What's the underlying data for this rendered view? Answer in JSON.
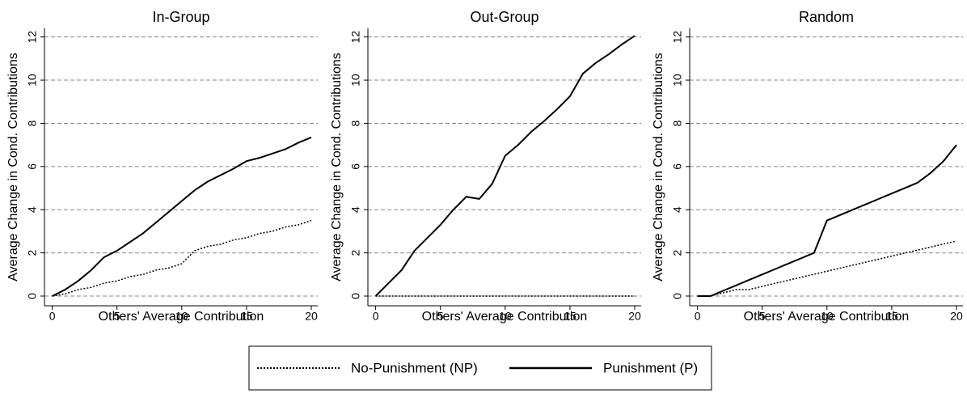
{
  "chart_data": [
    {
      "type": "line",
      "title": "In-Group",
      "xlabel": "Others' Average Contribution",
      "ylabel": "Average Change in Cond. Contributions",
      "x": [
        0,
        1,
        2,
        3,
        4,
        5,
        6,
        7,
        8,
        9,
        10,
        11,
        12,
        13,
        14,
        15,
        16,
        17,
        18,
        19,
        20
      ],
      "series": [
        {
          "name": "No-Punishment (NP)",
          "color": "#000000",
          "style": "dotted",
          "values": [
            0,
            0.1,
            0.3,
            0.4,
            0.6,
            0.7,
            0.9,
            1.0,
            1.2,
            1.3,
            1.5,
            2.1,
            2.3,
            2.4,
            2.6,
            2.7,
            2.9,
            3.0,
            3.2,
            3.3,
            3.5
          ]
        },
        {
          "name": "Punishment (P)",
          "color": "#000000",
          "style": "solid",
          "values": [
            0,
            0.3,
            0.7,
            1.2,
            1.8,
            2.1,
            2.5,
            2.9,
            3.4,
            3.9,
            4.4,
            4.9,
            5.3,
            5.6,
            5.9,
            6.25,
            6.4,
            6.6,
            6.8,
            7.1,
            7.35
          ]
        }
      ],
      "xlim": [
        -0.6,
        20.5
      ],
      "xticks": [
        0,
        5,
        10,
        15,
        20
      ],
      "ylim": [
        -0.45,
        12.4
      ],
      "yticks": [
        0,
        2,
        4,
        6,
        8,
        10,
        12
      ],
      "grid": true
    },
    {
      "type": "line",
      "title": "Out-Group",
      "xlabel": "Others' Average Contribution",
      "ylabel": "Average Change in Cond. Contributions",
      "x": [
        0,
        1,
        2,
        3,
        4,
        5,
        6,
        7,
        8,
        9,
        10,
        11,
        12,
        13,
        14,
        15,
        16,
        17,
        18,
        19,
        20
      ],
      "series": [
        {
          "name": "No-Punishment (NP)",
          "color": "#000000",
          "style": "dotted",
          "values": [
            0,
            0,
            0,
            0,
            0,
            0,
            0,
            0,
            0,
            0,
            0,
            0,
            0,
            0,
            0,
            0,
            0,
            0,
            0,
            0,
            0
          ]
        },
        {
          "name": "Punishment (P)",
          "color": "#000000",
          "style": "solid",
          "values": [
            0,
            0.6,
            1.2,
            2.1,
            2.7,
            3.3,
            4.0,
            4.6,
            4.5,
            5.2,
            6.5,
            7.0,
            7.6,
            8.1,
            8.65,
            9.25,
            10.3,
            10.8,
            11.2,
            11.65,
            12.05
          ]
        }
      ],
      "xlim": [
        -0.6,
        20.5
      ],
      "xticks": [
        0,
        5,
        10,
        15,
        20
      ],
      "ylim": [
        -0.45,
        12.4
      ],
      "yticks": [
        0,
        2,
        4,
        6,
        8,
        10,
        12
      ],
      "grid": true
    },
    {
      "type": "line",
      "title": "Random",
      "xlabel": "Others' Average Contribution",
      "ylabel": "Average Change in Cond. Contributions",
      "x": [
        0,
        1,
        2,
        3,
        4,
        5,
        6,
        7,
        8,
        9,
        10,
        11,
        12,
        13,
        14,
        15,
        16,
        17,
        18,
        19,
        20
      ],
      "series": [
        {
          "name": "No-Punishment (NP)",
          "color": "#000000",
          "style": "dotted",
          "values": [
            0,
            0,
            0.15,
            0.3,
            0.3,
            0.45,
            0.59,
            0.73,
            0.87,
            1.01,
            1.15,
            1.29,
            1.43,
            1.57,
            1.71,
            1.85,
            1.99,
            2.13,
            2.27,
            2.41,
            2.55
          ]
        },
        {
          "name": "Punishment (P)",
          "color": "#000000",
          "style": "solid",
          "values": [
            0,
            0,
            0.25,
            0.5,
            0.75,
            1.0,
            1.25,
            1.5,
            1.75,
            2.0,
            3.5,
            3.75,
            4.0,
            4.25,
            4.5,
            4.75,
            5.0,
            5.25,
            5.7,
            6.25,
            7.0
          ]
        }
      ],
      "xlim": [
        -0.6,
        20.5
      ],
      "xticks": [
        0,
        5,
        10,
        15,
        20
      ],
      "ylim": [
        -0.45,
        12.4
      ],
      "yticks": [
        0,
        2,
        4,
        6,
        8,
        10,
        12
      ],
      "grid": true
    }
  ]
}
